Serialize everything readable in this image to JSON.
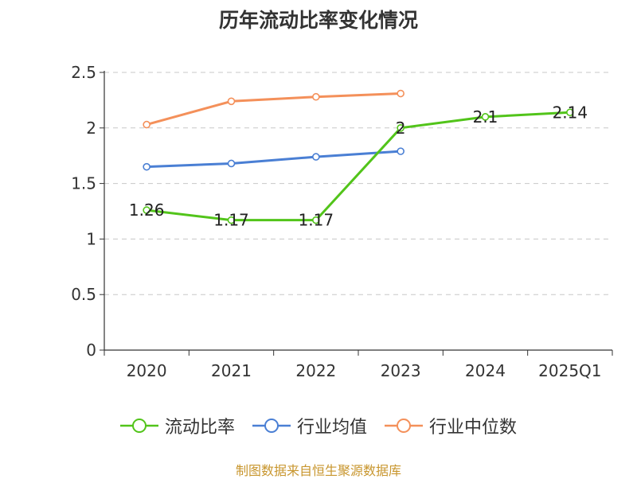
{
  "chart_data": {
    "type": "line",
    "title": "历年流动比率变化情况",
    "categories": [
      "2020",
      "2021",
      "2022",
      "2023",
      "2024",
      "2025Q1"
    ],
    "series": [
      {
        "name": "流动比率",
        "color": "#52c41a",
        "values": [
          1.26,
          1.17,
          1.17,
          2.0,
          2.1,
          2.14
        ],
        "labels": [
          "1.26",
          "1.17",
          "1.17",
          "2",
          "2.1",
          "2.14"
        ]
      },
      {
        "name": "行业均值",
        "color": "#4a7fd4",
        "values": [
          1.65,
          1.68,
          1.74,
          1.79,
          null,
          null
        ]
      },
      {
        "name": "行业中位数",
        "color": "#f4905a",
        "values": [
          2.03,
          2.24,
          2.28,
          2.31,
          null,
          null
        ]
      }
    ],
    "yticks": [
      "0",
      "0.5",
      "1",
      "1.5",
      "2",
      "2.5"
    ],
    "ylim": [
      0,
      2.5
    ],
    "grid": true,
    "legend_position": "bottom"
  },
  "source_note": "制图数据来自恒生聚源数据库"
}
